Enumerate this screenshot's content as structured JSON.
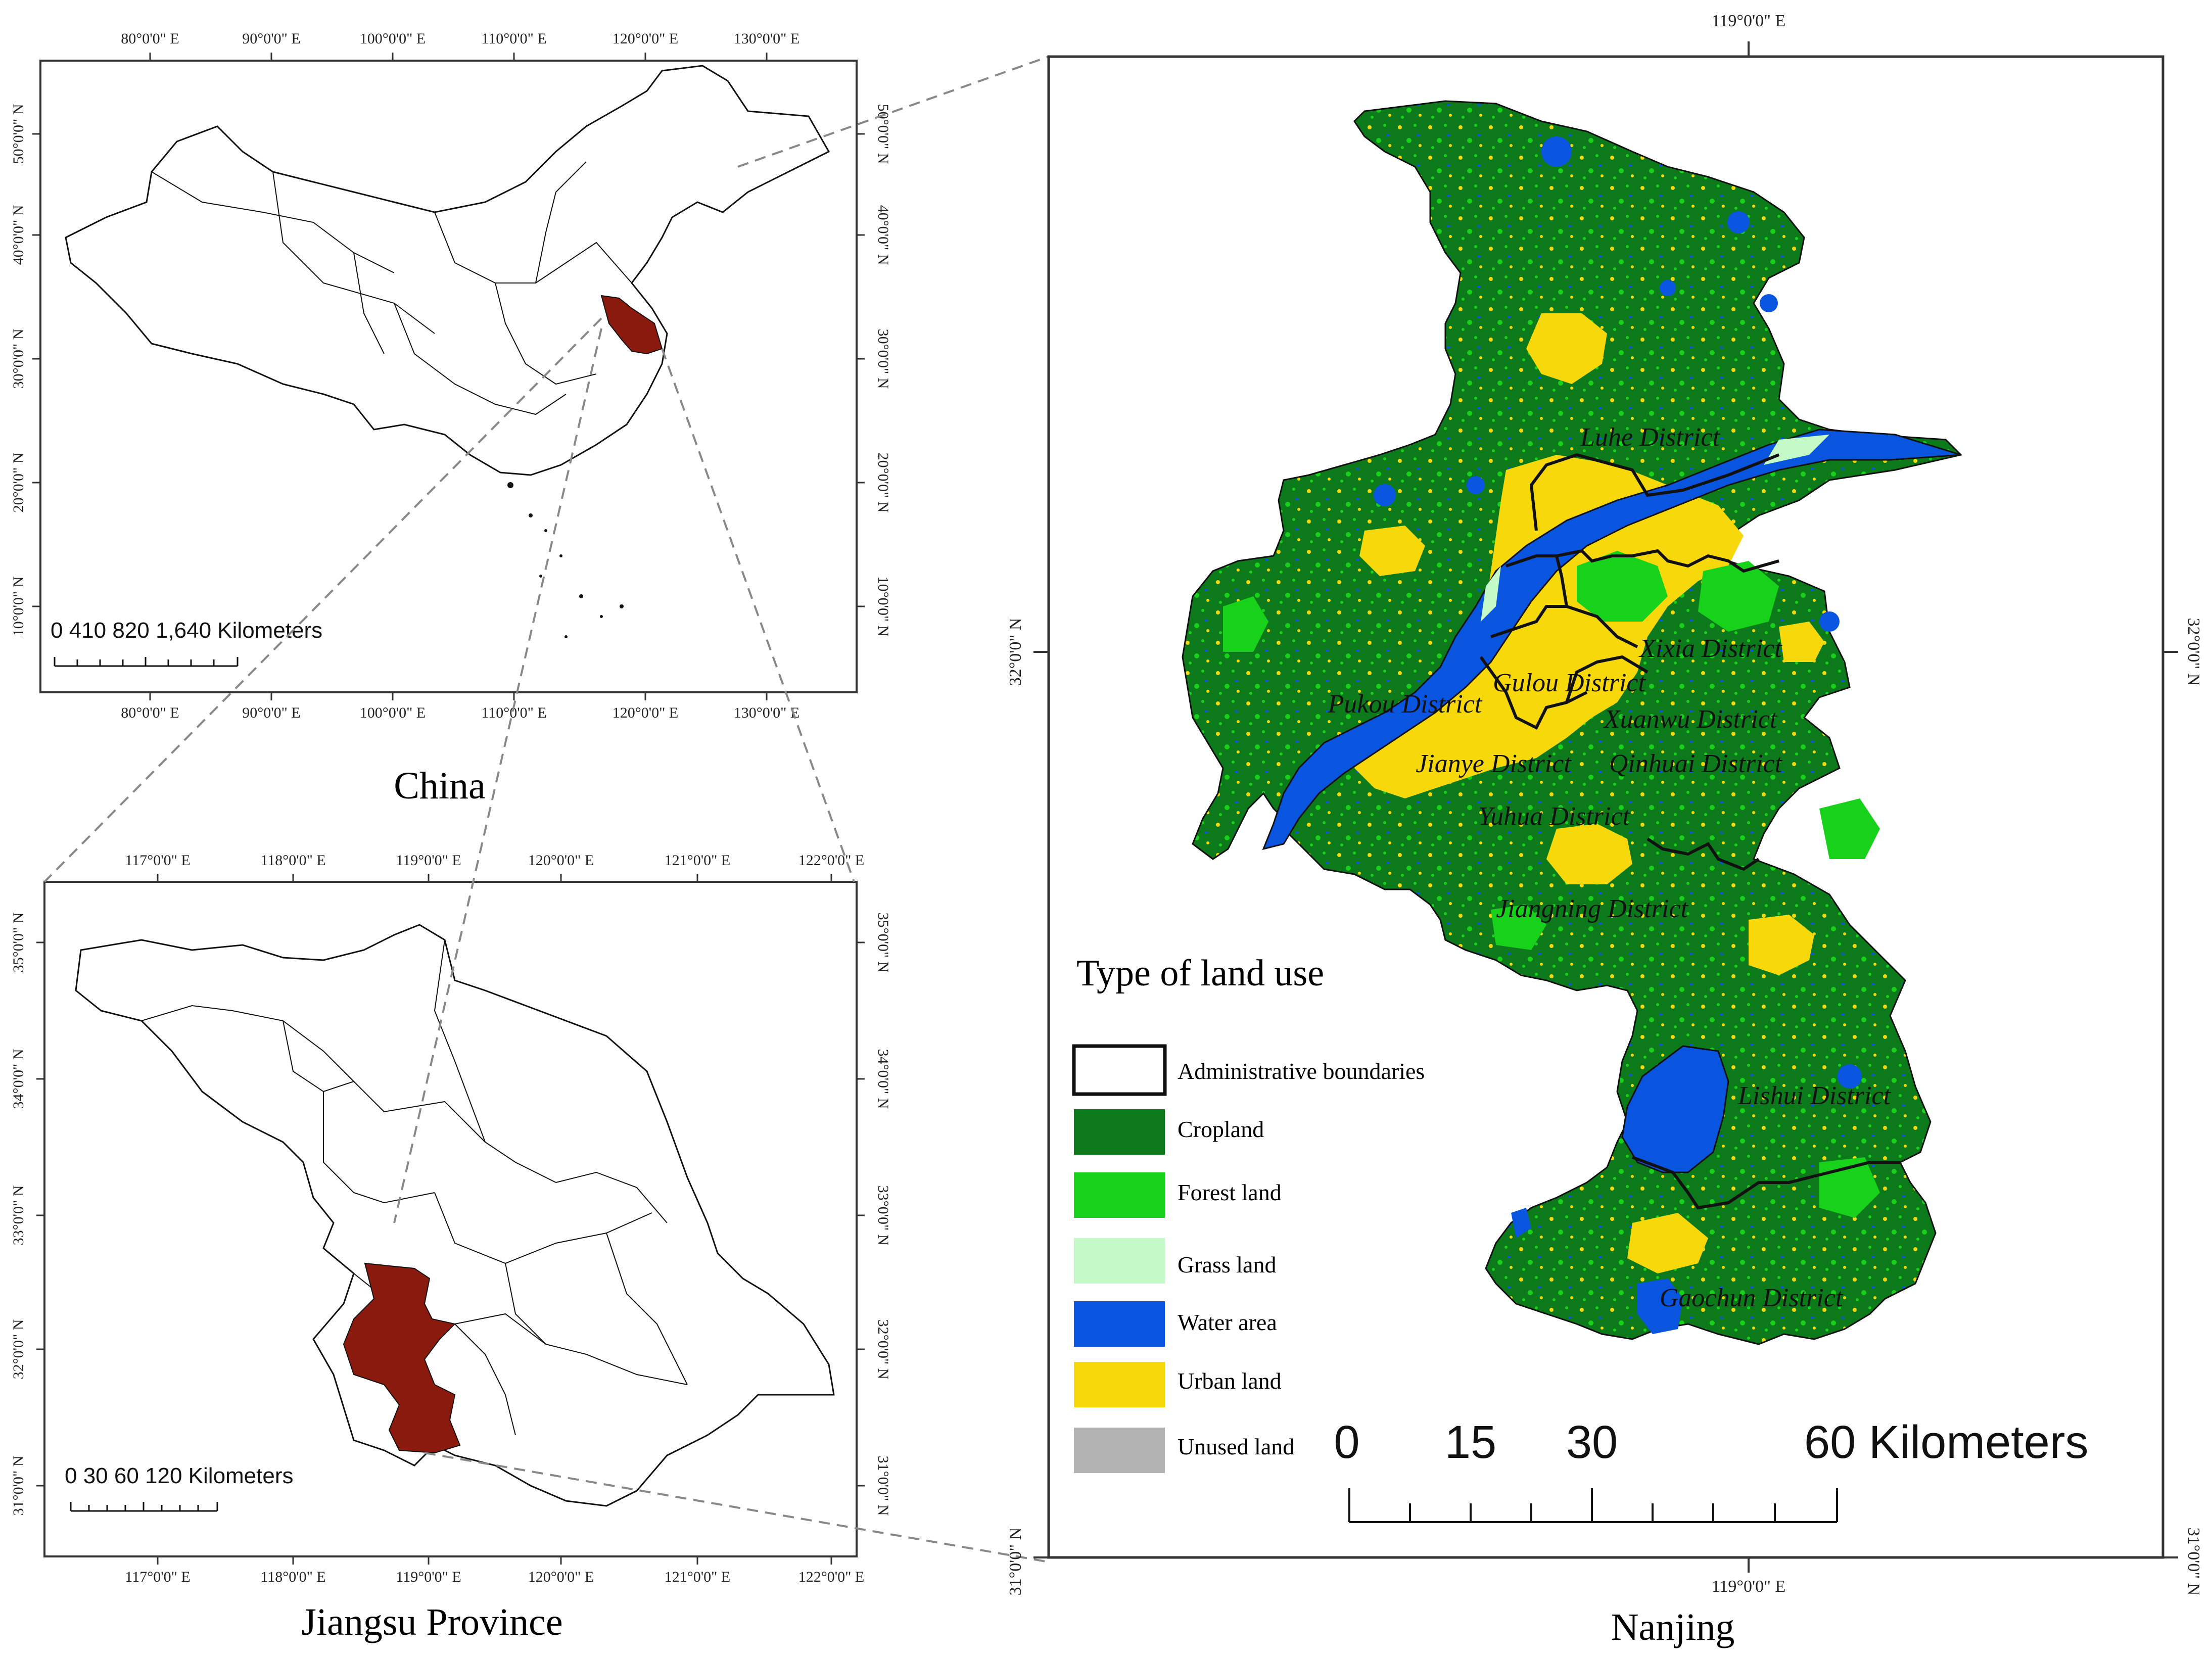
{
  "china_map": {
    "title": "China",
    "top_lon_ticks": [
      "80°0'0\" E",
      "90°0'0\" E",
      "100°0'0\" E",
      "110°0'0\" E",
      "120°0'0\" E",
      "130°0'0\" E"
    ],
    "bottom_lon_ticks": [
      "80°0'0\" E",
      "90°0'0\" E",
      "100°0'0\" E",
      "110°0'0\" E",
      "120°0'0\" E",
      "130°0'0\" E"
    ],
    "left_lat_ticks": [
      "50°0'0\" N",
      "40°0'0\" N",
      "30°0'0\" N",
      "20°0'0\" N",
      "10°0'0\" N"
    ],
    "right_lat_ticks": [
      "50°0'0\" N",
      "40°0'0\" N",
      "30°0'0\" N",
      "20°0'0\" N",
      "10°0'0\" N"
    ],
    "scale_label": "0   410 820       1,640 Kilometers",
    "highlight_color": "#8b1a0e"
  },
  "jiangsu_map": {
    "title": "Jiangsu Province",
    "top_lon_ticks": [
      "117°0'0\" E",
      "118°0'0\" E",
      "119°0'0\" E",
      "120°0'0\" E",
      "121°0'0\" E",
      "122°0'0\" E"
    ],
    "bottom_lon_ticks": [
      "117°0'0\" E",
      "118°0'0\" E",
      "119°0'0\" E",
      "120°0'0\" E",
      "121°0'0\" E",
      "122°0'0\" E"
    ],
    "left_lat_ticks": [
      "35°0'0\" N",
      "34°0'0\" N",
      "33°0'0\" N",
      "32°0'0\" N",
      "31°0'0\" N"
    ],
    "right_lat_ticks": [
      "35°0'0\" N",
      "34°0'0\" N",
      "33°0'0\" N",
      "32°0'0\" N",
      "31°0'0\" N"
    ],
    "scale_label": "0  30  60       120 Kilometers",
    "highlight_color": "#8b1a0e"
  },
  "nanjing_map": {
    "title": "Nanjing",
    "top_lon_tick": "119°0'0\" E",
    "bottom_lon_tick": "119°0'0\" E",
    "left_lat_tick": "32°0'0\" N",
    "right_lat_tick": "32°0'0\" N",
    "left_bottom_lat_tick": "31°0'0\" N",
    "right_bottom_lat_tick": "31°0'0\" N",
    "districts": [
      "Luhe District",
      "Xixia District",
      "Gulou District",
      "Pukou District",
      "Xuanwu District",
      "Jianye District",
      "Qinhuai District",
      "Yuhua District",
      "Jiangning District",
      "Lishui District",
      "Gaochun District"
    ],
    "scale": {
      "labels": [
        "0",
        "15",
        "30",
        "60 Kilometers"
      ]
    },
    "legend": {
      "title": "Type of land use",
      "items": [
        {
          "label": "Administrative  boundaries",
          "color": "#ffffff"
        },
        {
          "label": "Cropland",
          "color": "#0c7a1a"
        },
        {
          "label": "Forest land",
          "color": "#17d11a"
        },
        {
          "label": "Grass land",
          "color": "#c4f9c8"
        },
        {
          "label": "Water area",
          "color": "#0a55e0"
        },
        {
          "label": "Urban land",
          "color": "#f7d80a"
        },
        {
          "label": "Unused land",
          "color": "#b3b3b3"
        }
      ]
    }
  }
}
